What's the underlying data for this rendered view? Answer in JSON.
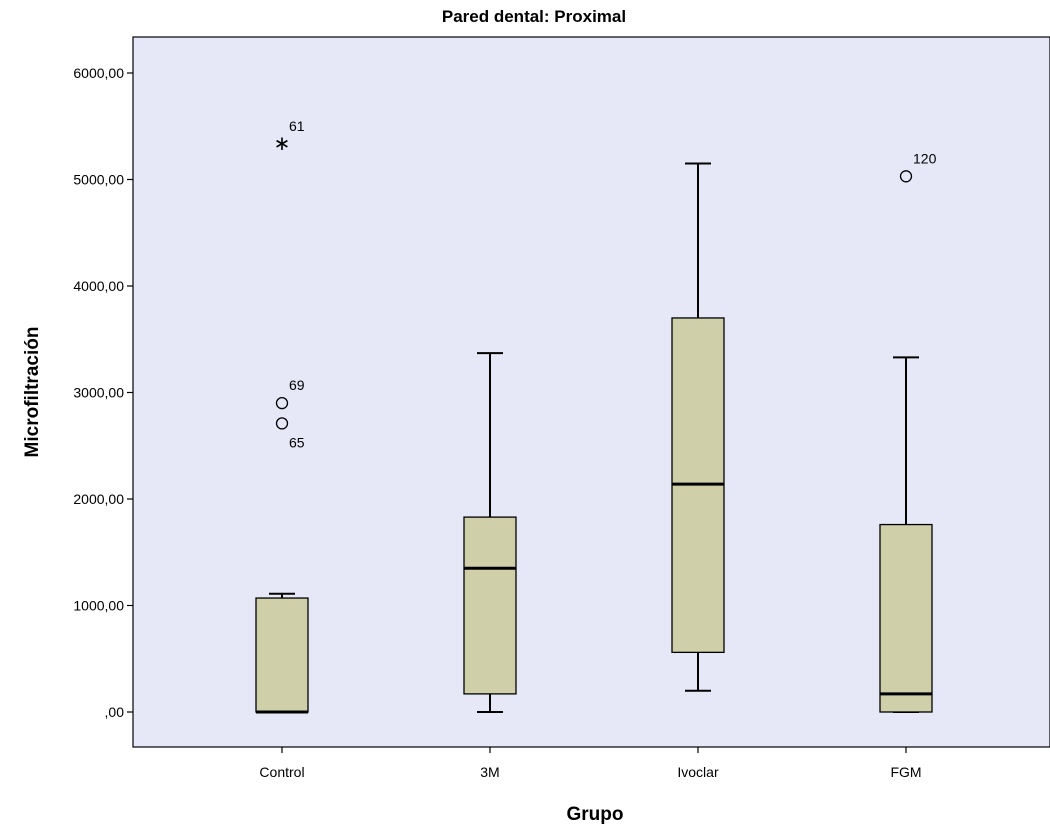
{
  "chart_data": {
    "type": "box",
    "title": "Pared dental: Proximal",
    "xlabel": "Grupo",
    "ylabel": "Microfiltración",
    "ylim": [
      -330,
      6330
    ],
    "yticks": [
      {
        "value": 0,
        "label": ",00"
      },
      {
        "value": 1000,
        "label": "1000,00"
      },
      {
        "value": 2000,
        "label": "2000,00"
      },
      {
        "value": 3000,
        "label": "3000,00"
      },
      {
        "value": 4000,
        "label": "4000,00"
      },
      {
        "value": 5000,
        "label": "5000,00"
      },
      {
        "value": 6000,
        "label": "6000,00"
      }
    ],
    "categories": [
      "Control",
      "3M",
      "Ivoclar",
      "FGM"
    ],
    "boxes": [
      {
        "category": "Control",
        "whisker_low": 0,
        "q1": 0,
        "median": 0,
        "q3": 1070,
        "whisker_high": 1110,
        "outliers": [
          {
            "value": 2710,
            "label": "65",
            "marker": "circle"
          },
          {
            "value": 2900,
            "label": "69",
            "marker": "circle"
          },
          {
            "value": 5350,
            "label": "61",
            "marker": "star"
          }
        ]
      },
      {
        "category": "3M",
        "whisker_low": 0,
        "q1": 170,
        "median": 1350,
        "q3": 1830,
        "whisker_high": 3370,
        "outliers": []
      },
      {
        "category": "Ivoclar",
        "whisker_low": 200,
        "q1": 560,
        "median": 2140,
        "q3": 3700,
        "whisker_high": 5150,
        "outliers": []
      },
      {
        "category": "FGM",
        "whisker_low": 0,
        "q1": 0,
        "median": 170,
        "q3": 1760,
        "whisker_high": 3330,
        "outliers": [
          {
            "value": 5030,
            "label": "120",
            "marker": "circle"
          }
        ]
      }
    ],
    "grid": false,
    "colors": {
      "plot_background": "#e6e8f8",
      "box_fill": "#cfd0aa",
      "stroke": "#000000"
    }
  }
}
